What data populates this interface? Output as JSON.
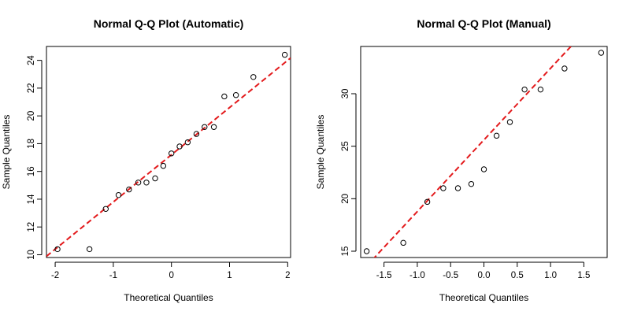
{
  "chart_data": [
    {
      "type": "scatter",
      "title": "Normal Q-Q Plot (Automatic)",
      "xlabel": "Theoretical Quantiles",
      "ylabel": "Sample Quantiles",
      "xlim": [
        -2.15,
        2.05
      ],
      "ylim": [
        9.8,
        25.0
      ],
      "xticks": [
        -2,
        -1,
        0,
        1,
        2
      ],
      "xtick_labels": [
        "-2",
        "-1",
        "0",
        "1",
        "2"
      ],
      "yticks": [
        10,
        12,
        14,
        16,
        18,
        20,
        22,
        24
      ],
      "ytick_labels": [
        "10",
        "12",
        "14",
        "16",
        "18",
        "20",
        "22",
        "24"
      ],
      "grid": false,
      "points": {
        "x": [
          -1.96,
          -1.41,
          -1.13,
          -0.91,
          -0.73,
          -0.57,
          -0.43,
          -0.28,
          -0.14,
          0.0,
          0.14,
          0.28,
          0.43,
          0.57,
          0.73,
          0.91,
          1.11,
          1.41,
          1.95
        ],
        "y": [
          10.4,
          10.4,
          13.3,
          14.3,
          14.7,
          15.2,
          15.2,
          15.5,
          16.4,
          17.3,
          17.8,
          18.1,
          18.7,
          19.2,
          19.2,
          21.4,
          21.5,
          22.8,
          24.4
        ]
      },
      "reference_line": {
        "intercept": 17.2,
        "slope": 3.4,
        "color": "#e31a1c",
        "style": "dashed"
      }
    },
    {
      "type": "scatter",
      "title": "Normal Q-Q Plot (Manual)",
      "xlabel": "Theoretical Quantiles",
      "ylabel": "Sample Quantiles",
      "xlim": [
        -1.85,
        1.85
      ],
      "ylim": [
        14.4,
        34.5
      ],
      "xticks": [
        -1.5,
        -1.0,
        -0.5,
        0.0,
        0.5,
        1.0,
        1.5
      ],
      "xtick_labels": [
        "-1.5",
        "-1.0",
        "-0.5",
        "0.0",
        "0.5",
        "1.0",
        "1.5"
      ],
      "yticks": [
        15,
        20,
        25,
        30
      ],
      "ytick_labels": [
        "15",
        "20",
        "25",
        "30"
      ],
      "grid": false,
      "points": {
        "x": [
          -1.76,
          -1.21,
          -0.85,
          -0.61,
          -0.39,
          -0.19,
          0.0,
          0.19,
          0.39,
          0.61,
          0.85,
          1.21,
          1.76
        ],
        "y": [
          15.0,
          15.8,
          19.7,
          21.0,
          21.0,
          21.4,
          22.8,
          26.0,
          27.3,
          30.4,
          30.4,
          32.4,
          33.9
        ]
      },
      "reference_line": {
        "intercept": 25.6,
        "slope": 6.82,
        "color": "#e31a1c",
        "style": "dashed"
      }
    }
  ]
}
